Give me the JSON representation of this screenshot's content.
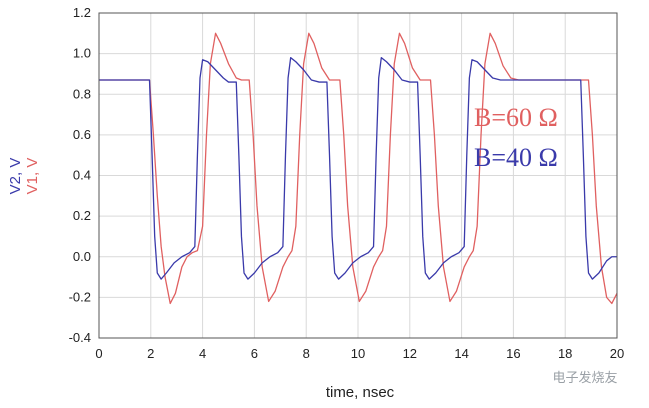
{
  "chart_data": {
    "type": "line",
    "xlabel": "time, nsec",
    "ylabel_series2": "V2, V",
    "ylabel_series1": "V1, V",
    "xlim": [
      0,
      20
    ],
    "ylim": [
      -0.4,
      1.2
    ],
    "xticks": [
      0,
      2,
      4,
      6,
      8,
      10,
      12,
      14,
      16,
      18,
      20
    ],
    "yticks": [
      -0.4,
      -0.2,
      0.0,
      0.2,
      0.4,
      0.6,
      0.8,
      1.0,
      1.2
    ],
    "ytick_labels": [
      "-0.4",
      "-0.2",
      "0.0",
      "0.2",
      "0.4",
      "0.6",
      "0.8",
      "1.0",
      "1.2"
    ],
    "grid": true,
    "legend_position": "right",
    "series": [
      {
        "name": "B=60 Ω",
        "color": "#e06060",
        "points": [
          [
            0,
            0.87
          ],
          [
            1.95,
            0.87
          ],
          [
            2.1,
            0.6
          ],
          [
            2.25,
            0.3
          ],
          [
            2.4,
            0.05
          ],
          [
            2.55,
            -0.1
          ],
          [
            2.75,
            -0.23
          ],
          [
            2.95,
            -0.18
          ],
          [
            3.2,
            -0.05
          ],
          [
            3.4,
            0.0
          ],
          [
            3.6,
            0.02
          ],
          [
            3.8,
            0.03
          ],
          [
            4.0,
            0.15
          ],
          [
            4.15,
            0.6
          ],
          [
            4.3,
            0.95
          ],
          [
            4.5,
            1.1
          ],
          [
            4.7,
            1.05
          ],
          [
            5.0,
            0.95
          ],
          [
            5.3,
            0.88
          ],
          [
            5.5,
            0.87
          ],
          [
            5.8,
            0.87
          ],
          [
            5.95,
            0.6
          ],
          [
            6.1,
            0.25
          ],
          [
            6.3,
            -0.05
          ],
          [
            6.55,
            -0.22
          ],
          [
            6.8,
            -0.17
          ],
          [
            7.1,
            -0.05
          ],
          [
            7.3,
            0.0
          ],
          [
            7.45,
            0.03
          ],
          [
            7.6,
            0.15
          ],
          [
            7.75,
            0.6
          ],
          [
            7.9,
            0.95
          ],
          [
            8.1,
            1.1
          ],
          [
            8.3,
            1.05
          ],
          [
            8.6,
            0.93
          ],
          [
            8.9,
            0.87
          ],
          [
            9.3,
            0.87
          ],
          [
            9.45,
            0.6
          ],
          [
            9.6,
            0.25
          ],
          [
            9.8,
            -0.05
          ],
          [
            10.05,
            -0.22
          ],
          [
            10.3,
            -0.17
          ],
          [
            10.6,
            -0.05
          ],
          [
            10.8,
            0.0
          ],
          [
            10.95,
            0.03
          ],
          [
            11.1,
            0.15
          ],
          [
            11.25,
            0.6
          ],
          [
            11.4,
            0.95
          ],
          [
            11.6,
            1.1
          ],
          [
            11.8,
            1.05
          ],
          [
            12.1,
            0.93
          ],
          [
            12.4,
            0.87
          ],
          [
            12.8,
            0.87
          ],
          [
            12.95,
            0.6
          ],
          [
            13.1,
            0.25
          ],
          [
            13.3,
            -0.05
          ],
          [
            13.55,
            -0.22
          ],
          [
            13.8,
            -0.17
          ],
          [
            14.1,
            -0.05
          ],
          [
            14.3,
            0.0
          ],
          [
            14.45,
            0.03
          ],
          [
            14.6,
            0.15
          ],
          [
            14.75,
            0.6
          ],
          [
            14.9,
            0.95
          ],
          [
            15.1,
            1.1
          ],
          [
            15.3,
            1.05
          ],
          [
            15.6,
            0.94
          ],
          [
            15.9,
            0.88
          ],
          [
            16.2,
            0.87
          ],
          [
            18.9,
            0.87
          ],
          [
            19.05,
            0.6
          ],
          [
            19.2,
            0.25
          ],
          [
            19.4,
            -0.05
          ],
          [
            19.6,
            -0.2
          ],
          [
            19.8,
            -0.23
          ],
          [
            20.0,
            -0.18
          ]
        ]
      },
      {
        "name": "B=40 Ω",
        "color": "#3a3aaa",
        "points": [
          [
            0,
            0.87
          ],
          [
            1.95,
            0.87
          ],
          [
            2.05,
            0.5
          ],
          [
            2.15,
            0.1
          ],
          [
            2.25,
            -0.08
          ],
          [
            2.4,
            -0.11
          ],
          [
            2.6,
            -0.08
          ],
          [
            2.9,
            -0.03
          ],
          [
            3.2,
            0.0
          ],
          [
            3.5,
            0.02
          ],
          [
            3.7,
            0.05
          ],
          [
            3.8,
            0.5
          ],
          [
            3.9,
            0.88
          ],
          [
            4.0,
            0.97
          ],
          [
            4.2,
            0.96
          ],
          [
            4.5,
            0.92
          ],
          [
            4.8,
            0.88
          ],
          [
            5.0,
            0.86
          ],
          [
            5.3,
            0.86
          ],
          [
            5.4,
            0.5
          ],
          [
            5.5,
            0.1
          ],
          [
            5.6,
            -0.08
          ],
          [
            5.75,
            -0.11
          ],
          [
            6.0,
            -0.08
          ],
          [
            6.3,
            -0.03
          ],
          [
            6.6,
            0.0
          ],
          [
            6.9,
            0.02
          ],
          [
            7.1,
            0.05
          ],
          [
            7.2,
            0.5
          ],
          [
            7.3,
            0.88
          ],
          [
            7.4,
            0.98
          ],
          [
            7.6,
            0.96
          ],
          [
            7.9,
            0.92
          ],
          [
            8.2,
            0.87
          ],
          [
            8.5,
            0.86
          ],
          [
            8.8,
            0.86
          ],
          [
            8.9,
            0.5
          ],
          [
            9.0,
            0.1
          ],
          [
            9.1,
            -0.08
          ],
          [
            9.25,
            -0.11
          ],
          [
            9.5,
            -0.08
          ],
          [
            9.8,
            -0.03
          ],
          [
            10.1,
            0.0
          ],
          [
            10.4,
            0.02
          ],
          [
            10.6,
            0.05
          ],
          [
            10.7,
            0.5
          ],
          [
            10.8,
            0.88
          ],
          [
            10.9,
            0.98
          ],
          [
            11.1,
            0.96
          ],
          [
            11.4,
            0.92
          ],
          [
            11.7,
            0.87
          ],
          [
            12.0,
            0.86
          ],
          [
            12.3,
            0.86
          ],
          [
            12.4,
            0.5
          ],
          [
            12.5,
            0.1
          ],
          [
            12.6,
            -0.08
          ],
          [
            12.75,
            -0.11
          ],
          [
            13.0,
            -0.08
          ],
          [
            13.3,
            -0.03
          ],
          [
            13.6,
            0.0
          ],
          [
            13.9,
            0.02
          ],
          [
            14.1,
            0.05
          ],
          [
            14.2,
            0.5
          ],
          [
            14.3,
            0.88
          ],
          [
            14.4,
            0.97
          ],
          [
            14.6,
            0.96
          ],
          [
            14.9,
            0.92
          ],
          [
            15.2,
            0.88
          ],
          [
            15.5,
            0.87
          ],
          [
            18.6,
            0.87
          ],
          [
            18.7,
            0.5
          ],
          [
            18.8,
            0.1
          ],
          [
            18.9,
            -0.08
          ],
          [
            19.05,
            -0.11
          ],
          [
            19.3,
            -0.08
          ],
          [
            19.6,
            -0.02
          ],
          [
            19.8,
            0.0
          ],
          [
            20.0,
            0.0
          ]
        ]
      }
    ]
  },
  "watermark": "电子发烧友"
}
